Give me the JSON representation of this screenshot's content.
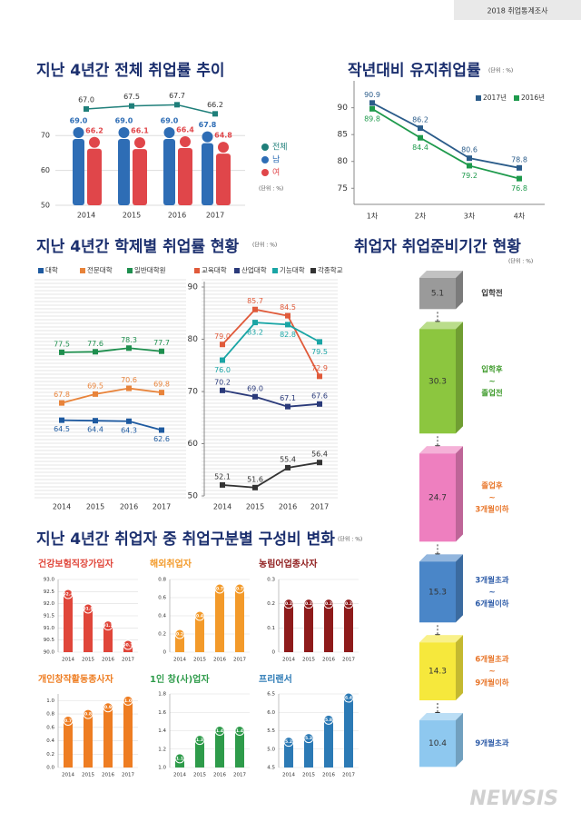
{
  "header": "2018 취업통계조사",
  "watermark": "NEWSIS",
  "chart_data": [
    {
      "type": "person-bar",
      "title": "지난 4년간 전체 취업률 추이",
      "unit": "(단위 : %)",
      "categories": [
        "2014",
        "2015",
        "2016",
        "2017"
      ],
      "series": [
        {
          "name": "전체",
          "color": "#1f7f7a",
          "axis": "y2",
          "values": [
            67.0,
            67.5,
            67.7,
            66.2
          ],
          "value_labels": [
            "67.0",
            "67.5",
            "67.7",
            "66.2"
          ]
        },
        {
          "name": "남",
          "color": "#2e6db5",
          "values": [
            69.0,
            69.0,
            69.0,
            67.8
          ],
          "value_labels": [
            "69.0",
            "69.0",
            "69.0",
            "67.8"
          ]
        },
        {
          "name": "여",
          "color": "#e0464a",
          "values": [
            66.2,
            66.1,
            66.4,
            64.8
          ],
          "value_labels": [
            "66.2",
            "66.1",
            "66.4",
            "64.8"
          ]
        }
      ],
      "ylim": [
        50,
        75
      ],
      "yticks": [
        50,
        60,
        70
      ],
      "y2lim": [
        64,
        70
      ]
    },
    {
      "type": "line",
      "title": "작년대비 유지취업률",
      "unit": "(단위 : %)",
      "categories": [
        "1차",
        "2차",
        "3차",
        "4차"
      ],
      "series": [
        {
          "name": "2017년",
          "color": "#2b5c8a",
          "values": [
            90.9,
            86.2,
            80.6,
            78.8
          ]
        },
        {
          "name": "2016년",
          "color": "#1e9a4c",
          "values": [
            89.8,
            84.4,
            79.2,
            76.8
          ]
        }
      ],
      "ylim": [
        72,
        94
      ],
      "yticks": [
        75,
        80,
        85,
        90
      ]
    },
    {
      "type": "line",
      "title": "지난 4년간 학제별 취업률 현황",
      "unit": "(단위 : %)",
      "categories": [
        "2014",
        "2015",
        "2016",
        "2017"
      ],
      "series": [
        {
          "name": "대학",
          "color": "#1e5aa0",
          "values": [
            64.5,
            64.4,
            64.3,
            62.6
          ]
        },
        {
          "name": "전문대학",
          "color": "#e8833a",
          "values": [
            67.8,
            69.5,
            70.6,
            69.8
          ]
        },
        {
          "name": "일반대학원",
          "color": "#1e8f4e",
          "values": [
            77.5,
            77.6,
            78.3,
            77.7
          ]
        }
      ],
      "ylim": [
        50,
        90
      ]
    },
    {
      "type": "line",
      "categories": [
        "2014",
        "2015",
        "2016",
        "2017"
      ],
      "series": [
        {
          "name": "교육대학",
          "color": "#e05a3a",
          "values": [
            79.0,
            85.7,
            84.5,
            72.9
          ],
          "value_labels": [
            "79.0",
            "85.7",
            "84.5",
            "72.9"
          ]
        },
        {
          "name": "산업대학",
          "color": "#2a3a7a",
          "values": [
            70.2,
            69.0,
            67.1,
            67.6
          ],
          "value_labels": [
            "70.2",
            "69.0",
            "67.1",
            "67.6"
          ]
        },
        {
          "name": "기능대학",
          "color": "#1aa5a5",
          "values": [
            76.0,
            83.2,
            82.8,
            79.5
          ],
          "value_labels": [
            "76.0",
            "83.2",
            "82.8",
            "79.5"
          ]
        },
        {
          "name": "각종학교",
          "color": "#333333",
          "values": [
            52.1,
            51.6,
            55.4,
            56.4
          ]
        }
      ],
      "ylim": [
        50,
        90
      ],
      "yticks": [
        50,
        60,
        70,
        80,
        90
      ]
    },
    {
      "type": "box-stack",
      "title": "취업자 취업준비기간 현황",
      "unit": "(단위 : %)",
      "categories": [
        [
          "입학전"
        ],
        [
          "입학후",
          "~",
          "졸업전"
        ],
        [
          "졸업후",
          "~",
          "3개월이하"
        ],
        [
          "3개월초과",
          "~",
          "6개월이하"
        ],
        [
          "6개월초과",
          "~",
          "9개월이하"
        ],
        [
          "9개월초과"
        ]
      ],
      "values": [
        5.1,
        30.3,
        24.7,
        15.3,
        14.3,
        10.4
      ],
      "colors": [
        "#9a9a9a",
        "#8cc63f",
        "#ee7fbf",
        "#4a86c8",
        "#f6e83c",
        "#8ec8ef"
      ],
      "label_colors": [
        "#333333",
        "#3d9a2a",
        "#e8762a",
        "#2e5ca8",
        "#e8762a",
        "#2e5ca8"
      ]
    },
    {
      "type": "bar-panels",
      "title": "지난 4년간 취업자 중 취업구분별 구성비 변화",
      "unit": "(단위 : %)",
      "panels": [
        {
          "title": "건강보험직장가입자",
          "color": "#e0463a",
          "categories": [
            "2014",
            "2015",
            "2016",
            "2017"
          ],
          "values": [
            92.4,
            91.8,
            91.1,
            90.3
          ],
          "ylim": [
            90,
            93
          ],
          "yticks": [
            {
              "value": 90,
              "label": "90.0"
            },
            90.5,
            {
              "value": 91,
              "label": "91.0"
            },
            91.5,
            {
              "value": 92,
              "label": "92.0"
            },
            92.5,
            {
              "value": 93,
              "label": "93.0"
            }
          ]
        },
        {
          "title": "해외취업자",
          "color": "#f39a2a",
          "categories": [
            "2014",
            "2015",
            "2016",
            "2017"
          ],
          "values": [
            0.2,
            0.4,
            0.7,
            0.7
          ],
          "ylim": [
            0,
            0.8
          ],
          "yticks": [
            0,
            0.2,
            0.4,
            0.6,
            0.8
          ]
        },
        {
          "title": "농림어업종사자",
          "color": "#8e1b1b",
          "categories": [
            "2014",
            "2015",
            "2016",
            "2017"
          ],
          "values": [
            0.2,
            0.2,
            0.2,
            0.2
          ],
          "ylim": [
            0,
            0.3
          ],
          "yticks": [
            0,
            0.1,
            0.2,
            0.3
          ]
        },
        {
          "title": "개인창작활동종사자",
          "color": "#ee7d22",
          "categories": [
            "2014",
            "2015",
            "2016",
            "2017"
          ],
          "values": [
            0.7,
            0.8,
            0.9,
            1.0
          ],
          "value_labels": [
            "0.7",
            "0.8",
            "0.9",
            "1.0"
          ],
          "ylim": [
            0,
            1.1
          ],
          "yticks": [
            {
              "value": 0,
              "label": "0.0"
            },
            0.2,
            0.4,
            0.6,
            0.8,
            {
              "value": 1,
              "label": "1.0"
            }
          ]
        },
        {
          "title": "1인 창(사)업자",
          "color": "#2e9b4a",
          "categories": [
            "2014",
            "2015",
            "2016",
            "2017"
          ],
          "values": [
            1.1,
            1.3,
            1.4,
            1.4
          ],
          "ylim": [
            1.0,
            1.8
          ],
          "yticks": [
            {
              "value": 1,
              "label": "1.0"
            },
            1.2,
            1.4,
            1.6,
            1.8
          ]
        },
        {
          "title": "프리랜서",
          "color": "#2c7ab5",
          "categories": [
            "2014",
            "2015",
            "2016",
            "2017"
          ],
          "values": [
            5.2,
            5.3,
            5.8,
            6.4
          ],
          "ylim": [
            4.5,
            6.5
          ],
          "yticks": [
            4.5,
            {
              "value": 5,
              "label": "5.0"
            },
            5.5,
            {
              "value": 6,
              "label": "6.0"
            },
            6.5
          ]
        }
      ]
    }
  ]
}
